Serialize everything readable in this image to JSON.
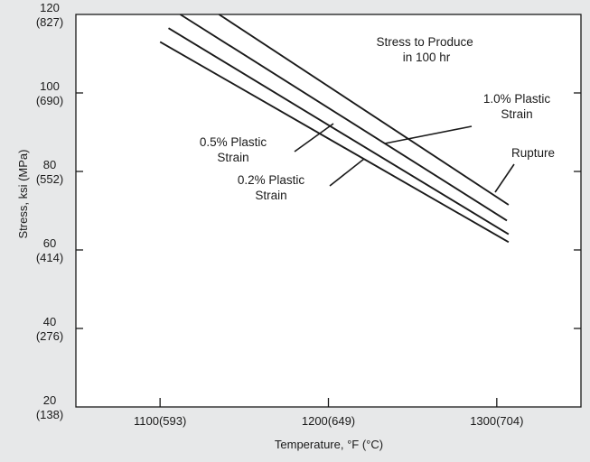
{
  "chart_data": {
    "type": "line",
    "title": "",
    "xlabel": "Temperature, °F (°C)",
    "ylabel": "Stress, ksi (MPa)",
    "xlim": [
      1050,
      1350
    ],
    "ylim": [
      20,
      120
    ],
    "grid": false,
    "x_ticks": [
      {
        "value": 1100,
        "label": "1100(593)"
      },
      {
        "value": 1200,
        "label": "1200(649)"
      },
      {
        "value": 1300,
        "label": "1300(704)"
      }
    ],
    "y_ticks": [
      {
        "value": 120,
        "ksi": "120",
        "mpa": "(827)"
      },
      {
        "value": 100,
        "ksi": "100",
        "mpa": "(690)"
      },
      {
        "value": 80,
        "ksi": "80",
        "mpa": "(552)"
      },
      {
        "value": 60,
        "ksi": "60",
        "mpa": "(414)"
      },
      {
        "value": 40,
        "ksi": "40",
        "mpa": "(276)"
      },
      {
        "value": 20,
        "ksi": "20",
        "mpa": "(138)"
      }
    ],
    "heading": [
      "Stress to Produce",
      "in 100 hr"
    ],
    "series": [
      {
        "name": "Rupture",
        "label_lines": [
          "Rupture"
        ],
        "x": [
          1135,
          1307
        ],
        "y": [
          120,
          71.5
        ]
      },
      {
        "name": "1.0% Plastic Strain",
        "label_lines": [
          "1.0% Plastic",
          "Strain"
        ],
        "x": [
          1112,
          1306
        ],
        "y": [
          120,
          67.5
        ]
      },
      {
        "name": "0.5% Plastic Strain",
        "label_lines": [
          "0.5% Plastic",
          "Strain"
        ],
        "x": [
          1105,
          1307
        ],
        "y": [
          116.5,
          64
        ]
      },
      {
        "name": "0.2% Plastic Strain",
        "label_lines": [
          "0.2% Plastic",
          "Strain"
        ],
        "x": [
          1100,
          1307
        ],
        "y": [
          113,
          62
        ]
      }
    ]
  }
}
